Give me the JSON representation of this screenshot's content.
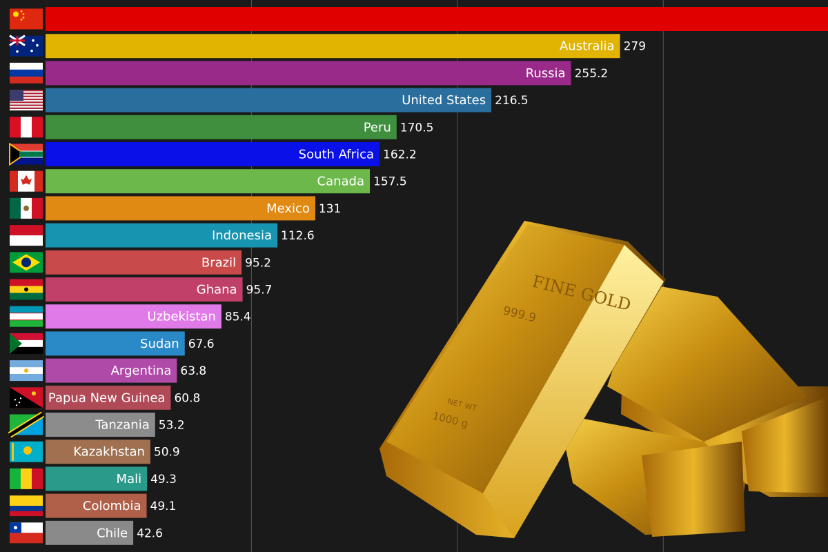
{
  "chart_data": {
    "type": "bar",
    "orientation": "horizontal",
    "categories": [
      "",
      "Australia",
      "Russia",
      "United States",
      "Peru",
      "South Africa",
      "Canada",
      "Mexico",
      "Indonesia",
      "Brazil",
      "Ghana",
      "Uzbekistan",
      "Sudan",
      "Argentina",
      "Papua New Guinea",
      "Tanzania",
      "Kazakhstan",
      "Mali",
      "Colombia",
      "Chile"
    ],
    "values": [
      380,
      279,
      255.2,
      216.5,
      170.5,
      162.2,
      157.5,
      131,
      112.6,
      95.2,
      95.7,
      85.4,
      67.6,
      63.8,
      60.8,
      53.2,
      50.9,
      49.3,
      49.1,
      42.6
    ],
    "value_labels": [
      "",
      "279",
      "255.2",
      "216.5",
      "170.5",
      "162.2",
      "157.5",
      "131",
      "112.6",
      "95.2",
      "95.7",
      "85.4",
      "67.6",
      "63.8",
      "60.8",
      "53.2",
      "50.9",
      "49.3",
      "49.1",
      "42.6"
    ],
    "colors": [
      "#e00000",
      "#e0b400",
      "#9a2a8a",
      "#2a6e9e",
      "#3f8f3f",
      "#0a10e8",
      "#6cb84a",
      "#e08a14",
      "#1694b0",
      "#c84a4a",
      "#c0406a",
      "#e07ae8",
      "#2a8ac8",
      "#b04aa8",
      "#b04a56",
      "#8c8c8c",
      "#a07050",
      "#2a9a8a",
      "#b06048",
      "#8a8a8a"
    ],
    "flags": [
      "china-flag",
      "australia-flag",
      "russia-flag",
      "united-states-flag",
      "peru-flag",
      "south-africa-flag",
      "canada-flag",
      "mexico-flag",
      "indonesia-flag",
      "brazil-flag",
      "ghana-flag",
      "uzbekistan-flag",
      "sudan-flag",
      "argentina-flag",
      "papua-new-guinea-flag",
      "tanzania-flag",
      "kazakhstan-flag",
      "mali-flag",
      "colombia-flag",
      "chile-flag"
    ],
    "xlim": [
      0,
      380
    ],
    "grid": true,
    "title": "",
    "xlabel": "",
    "ylabel": ""
  },
  "illustration": {
    "bar_stamp": "FINE GOLD",
    "purity": "999.9",
    "weight_label": "NET WT",
    "weight": "1000 g"
  }
}
